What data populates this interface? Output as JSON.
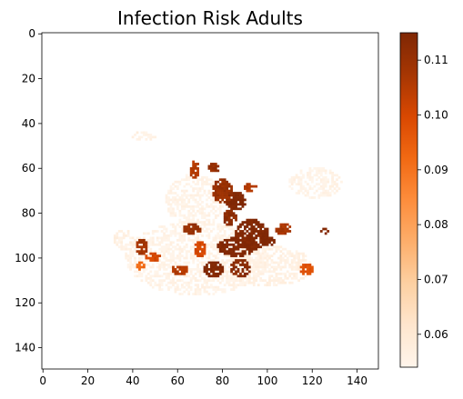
{
  "chart_data": {
    "type": "heatmap",
    "title": "Infection Risk Adults",
    "xlabel": "",
    "ylabel": "",
    "grid_size": [
      150,
      150
    ],
    "xlim": [
      -0.5,
      149.5
    ],
    "ylim": [
      149.5,
      -0.5
    ],
    "x_ticks": [
      0,
      20,
      40,
      60,
      80,
      100,
      120,
      140
    ],
    "y_ticks": [
      0,
      20,
      40,
      60,
      80,
      100,
      120,
      140
    ],
    "colormap": "Oranges",
    "colorbar": {
      "range": [
        0.054,
        0.115
      ],
      "ticks": [
        0.06,
        0.07,
        0.08,
        0.09,
        0.1,
        0.11
      ],
      "tick_labels": [
        "0.06",
        "0.07",
        "0.08",
        "0.09",
        "0.10",
        "0.11"
      ],
      "colors": [
        "#fff5eb",
        "#fee6ce",
        "#fdd0a2",
        "#fdae6b",
        "#fd8d3c",
        "#f16913",
        "#d94801",
        "#a63603",
        "#7f2704"
      ]
    },
    "nan_background": "#ffffff",
    "regions": [
      {
        "x": [
          37,
          100
        ],
        "y": [
          84,
          116
        ],
        "value": 0.055
      },
      {
        "x": [
          55,
          80
        ],
        "y": [
          63,
          86
        ],
        "value": 0.055
      },
      {
        "x": [
          80,
          120
        ],
        "y": [
          95,
          112
        ],
        "value": 0.056
      },
      {
        "x": [
          40,
          50
        ],
        "y": [
          44,
          47
        ],
        "value": 0.056
      },
      {
        "x": [
          110,
          133
        ],
        "y": [
          60,
          73
        ],
        "value": 0.055
      },
      {
        "x": [
          32,
          40
        ],
        "y": [
          88,
          96
        ],
        "value": 0.056
      },
      {
        "x": [
          86,
          100
        ],
        "y": [
          83,
          96
        ],
        "value": 0.115
      },
      {
        "x": [
          78,
          94
        ],
        "y": [
          91,
          99
        ],
        "value": 0.115
      },
      {
        "x": [
          82,
          90
        ],
        "y": [
          71,
          78
        ],
        "value": 0.115
      },
      {
        "x": [
          76,
          84
        ],
        "y": [
          65,
          75
        ],
        "value": 0.11
      },
      {
        "x": [
          72,
          80
        ],
        "y": [
          102,
          108
        ],
        "value": 0.115
      },
      {
        "x": [
          84,
          92
        ],
        "y": [
          101,
          108
        ],
        "value": 0.113
      },
      {
        "x": [
          63,
          70
        ],
        "y": [
          85,
          89
        ],
        "value": 0.11
      },
      {
        "x": [
          58,
          64
        ],
        "y": [
          103,
          107
        ],
        "value": 0.105
      },
      {
        "x": [
          42,
          46
        ],
        "y": [
          92,
          98
        ],
        "value": 0.108
      },
      {
        "x": [
          46,
          52
        ],
        "y": [
          98,
          101
        ],
        "value": 0.1
      },
      {
        "x": [
          104,
          110
        ],
        "y": [
          85,
          89
        ],
        "value": 0.107
      },
      {
        "x": [
          115,
          120
        ],
        "y": [
          103,
          107
        ],
        "value": 0.098
      },
      {
        "x": [
          124,
          127
        ],
        "y": [
          87,
          89
        ],
        "value": 0.115
      },
      {
        "x": [
          74,
          78
        ],
        "y": [
          58,
          62
        ],
        "value": 0.11
      },
      {
        "x": [
          66,
          69
        ],
        "y": [
          57,
          64
        ],
        "value": 0.105
      },
      {
        "x": [
          98,
          103
        ],
        "y": [
          91,
          94
        ],
        "value": 0.115
      },
      {
        "x": [
          68,
          72
        ],
        "y": [
          93,
          99
        ],
        "value": 0.1
      },
      {
        "x": [
          42,
          45
        ],
        "y": [
          102,
          105
        ],
        "value": 0.092
      },
      {
        "x": [
          80,
          86
        ],
        "y": [
          79,
          85
        ],
        "value": 0.112
      },
      {
        "x": [
          90,
          95
        ],
        "y": [
          67,
          70
        ],
        "value": 0.105
      }
    ]
  }
}
